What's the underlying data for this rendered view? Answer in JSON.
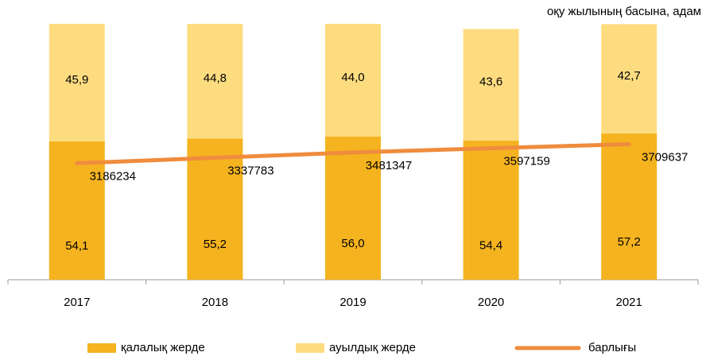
{
  "chart_data": {
    "type": "bar",
    "subtitle": "оқу жылының басына, адам",
    "categories": [
      "2017",
      "2018",
      "2019",
      "2020",
      "2021"
    ],
    "stacked": true,
    "series": [
      {
        "name": "қалалық жерде",
        "type": "bar",
        "color": "#f5b31f",
        "values": [
          54.1,
          55.2,
          56.0,
          54.4,
          57.2
        ],
        "value_labels": [
          "54,1",
          "55,2",
          "56,0",
          "54,4",
          "57,2"
        ]
      },
      {
        "name": "ауылдық жерде",
        "type": "bar",
        "color": "#fddc80",
        "values": [
          45.9,
          44.8,
          44.0,
          43.6,
          42.7
        ],
        "value_labels": [
          "45,9",
          "44,8",
          "44,0",
          "43,6",
          "42,7"
        ]
      },
      {
        "name": "барлығы",
        "type": "line",
        "axis": "y2",
        "color": "#ef8c3d",
        "values": [
          3186234,
          3337783,
          3481347,
          3597159,
          3709637
        ]
      }
    ],
    "ylim": [
      0,
      100
    ],
    "y2lim": [
      0,
      7000000
    ]
  }
}
